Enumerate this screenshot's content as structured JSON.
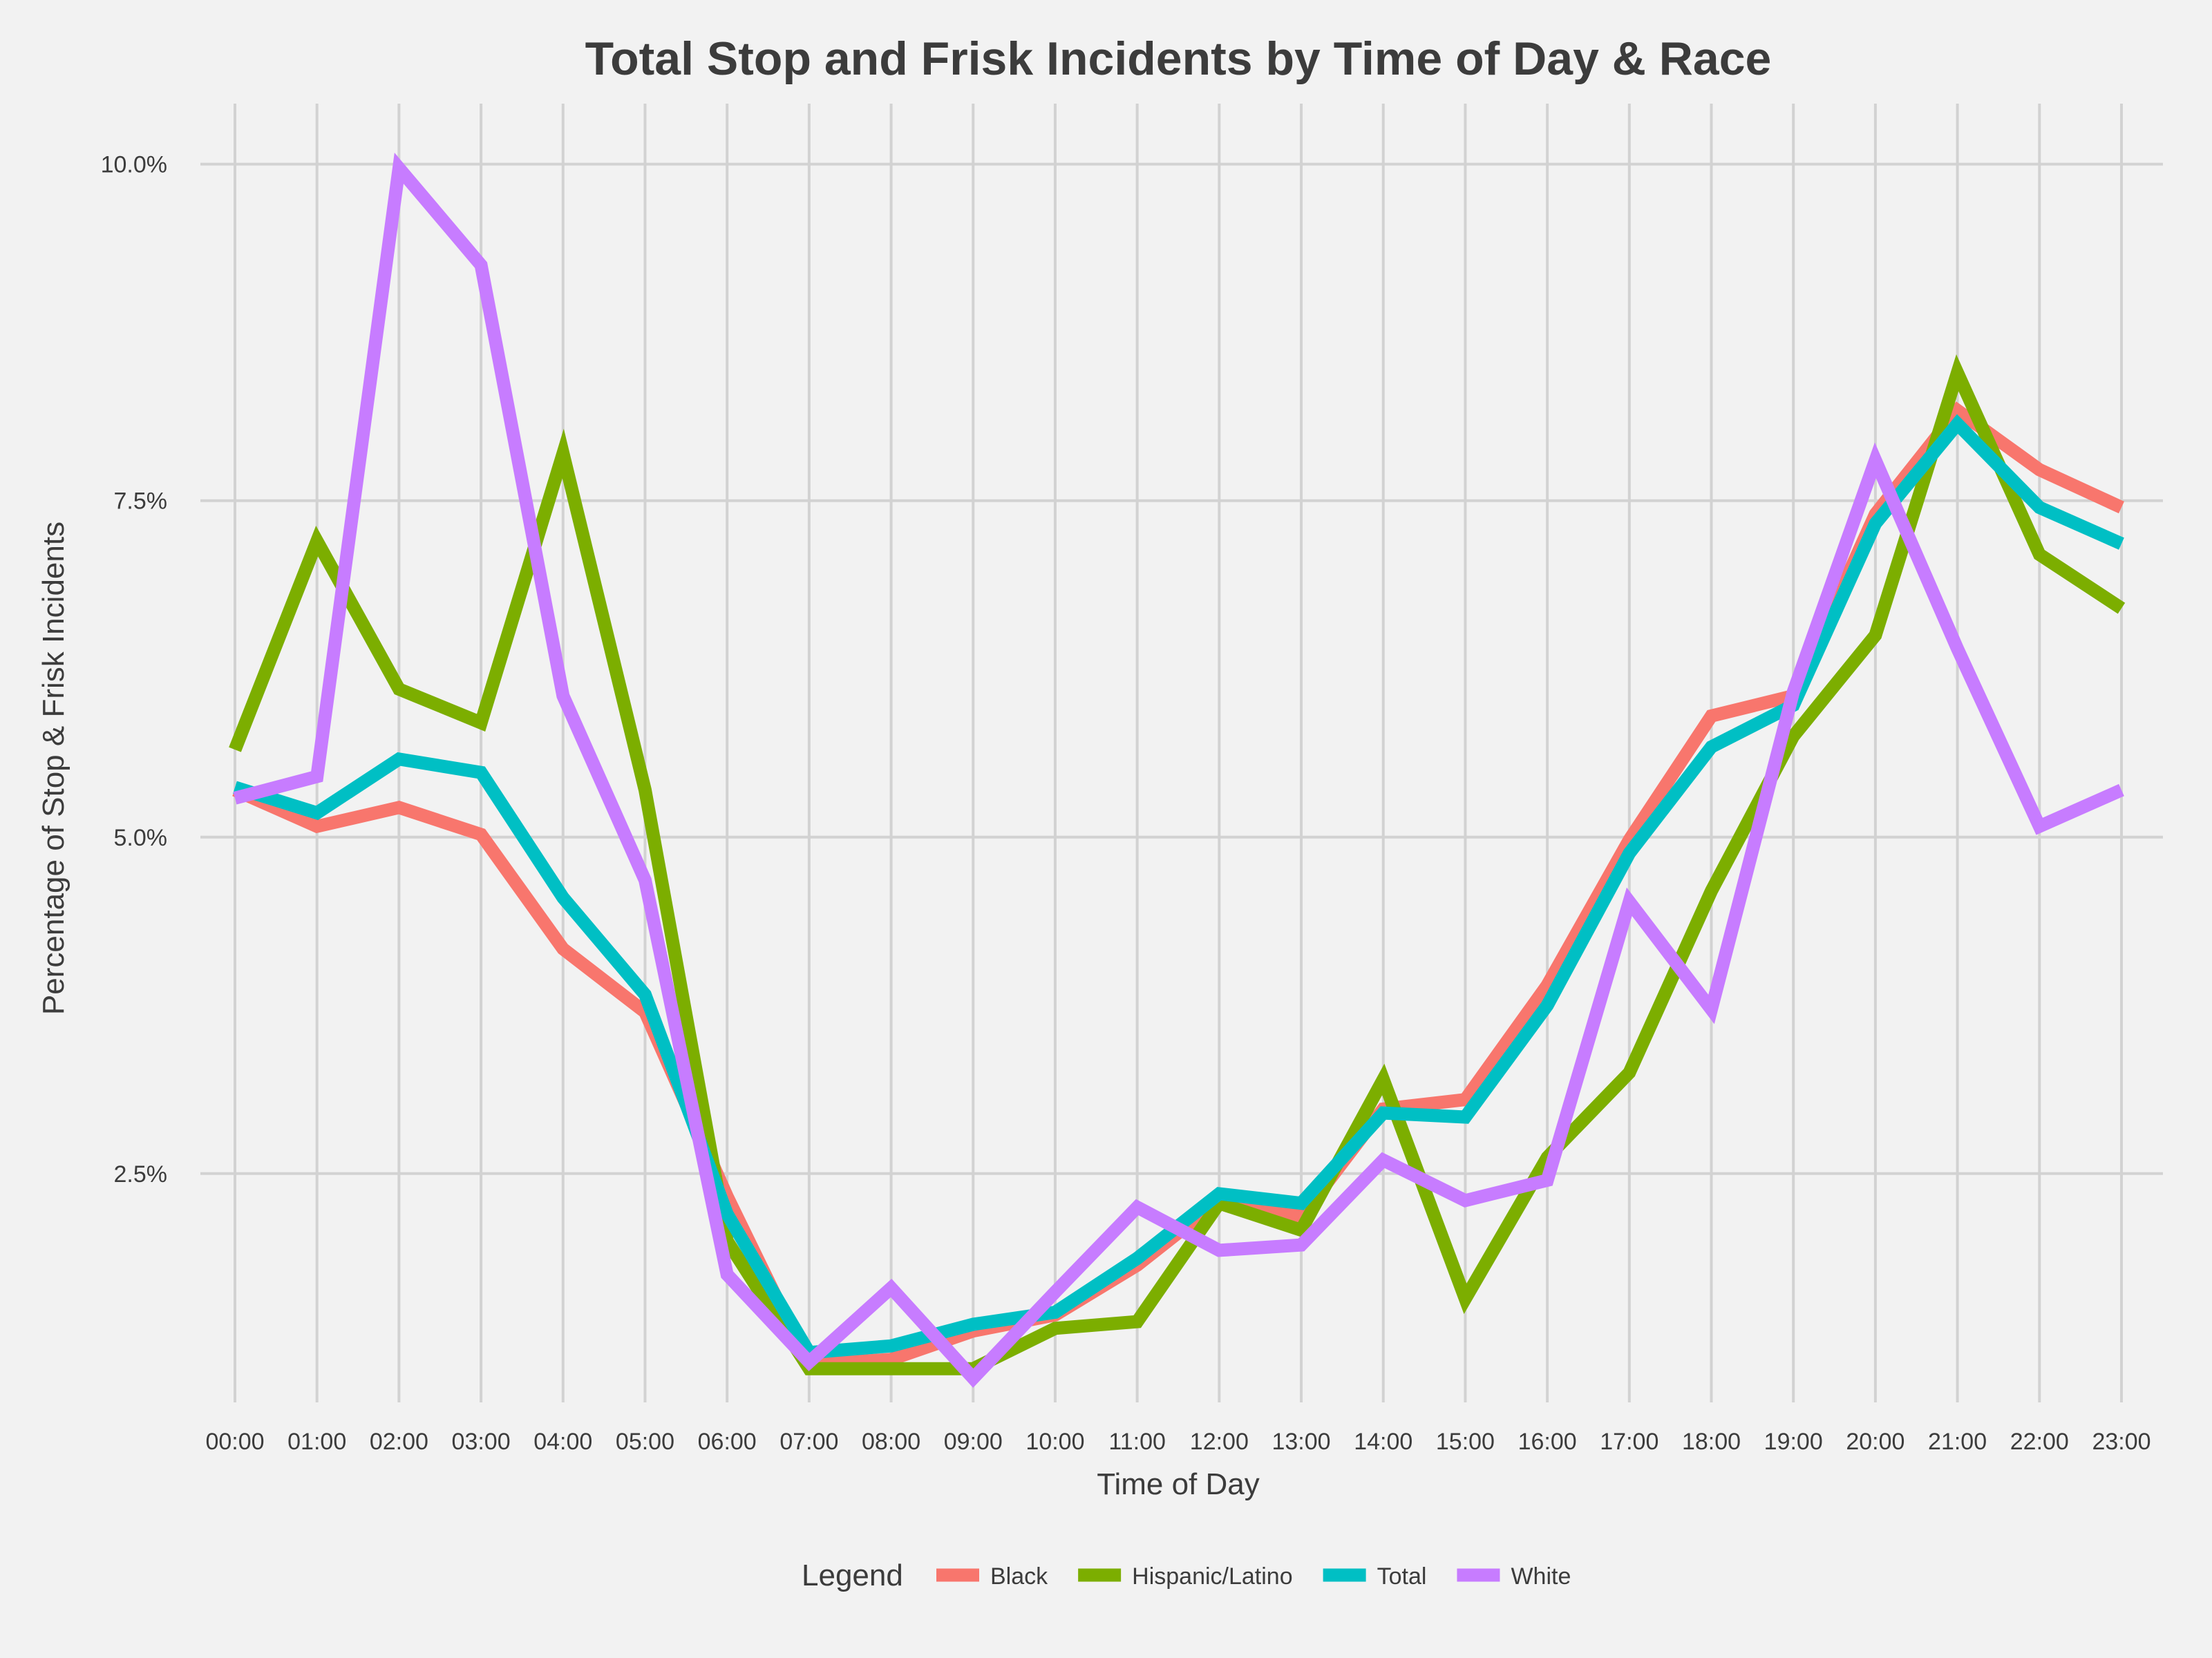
{
  "chart_data": {
    "type": "line",
    "title": "Total Stop and Frisk Incidents by Time of Day & Race",
    "xlabel": "Time of Day",
    "ylabel": "Percentage of Stop & Frisk Incidents",
    "categories": [
      "00:00",
      "01:00",
      "02:00",
      "03:00",
      "04:00",
      "05:00",
      "06:00",
      "07:00",
      "08:00",
      "09:00",
      "10:00",
      "11:00",
      "12:00",
      "13:00",
      "14:00",
      "15:00",
      "16:00",
      "17:00",
      "18:00",
      "19:00",
      "20:00",
      "21:00",
      "22:00",
      "23:00"
    ],
    "yticks": [
      2.5,
      5.0,
      7.5,
      10.0
    ],
    "ytick_labels": [
      "2.5%",
      "5.0%",
      "7.5%",
      "10.0%"
    ],
    "ylim": [
      0.8,
      10.45
    ],
    "grid": true,
    "legend": {
      "title": "Legend",
      "placement": "bottom"
    },
    "series": [
      {
        "name": "Black",
        "color": "#f8766d",
        "values": [
          5.35,
          5.08,
          5.22,
          5.02,
          4.17,
          3.7,
          2.33,
          1.08,
          1.12,
          1.33,
          1.45,
          1.82,
          2.3,
          2.18,
          2.98,
          3.05,
          3.9,
          4.98,
          5.9,
          6.05,
          7.4,
          8.17,
          7.73,
          7.45
        ]
      },
      {
        "name": "Hispanic/Latino",
        "color": "#7cae00",
        "values": [
          5.65,
          7.2,
          6.1,
          5.85,
          7.85,
          5.35,
          2.0,
          1.05,
          1.05,
          1.05,
          1.35,
          1.4,
          2.28,
          2.08,
          3.2,
          1.57,
          2.62,
          3.25,
          4.6,
          5.75,
          6.5,
          8.45,
          7.1,
          6.7
        ]
      },
      {
        "name": "Total",
        "color": "#00bfc4",
        "values": [
          5.37,
          5.18,
          5.58,
          5.48,
          4.55,
          3.83,
          2.2,
          1.17,
          1.22,
          1.38,
          1.47,
          1.87,
          2.35,
          2.28,
          2.95,
          2.92,
          3.75,
          4.88,
          5.67,
          5.98,
          7.33,
          8.07,
          7.45,
          7.18
        ]
      },
      {
        "name": "White",
        "color": "#c77cff",
        "values": [
          5.29,
          5.45,
          9.97,
          9.25,
          6.05,
          4.68,
          1.75,
          1.1,
          1.65,
          0.98,
          1.62,
          2.25,
          1.93,
          1.97,
          2.6,
          2.3,
          2.45,
          4.52,
          3.72,
          6.08,
          7.8,
          6.4,
          5.08,
          5.35
        ]
      }
    ]
  }
}
